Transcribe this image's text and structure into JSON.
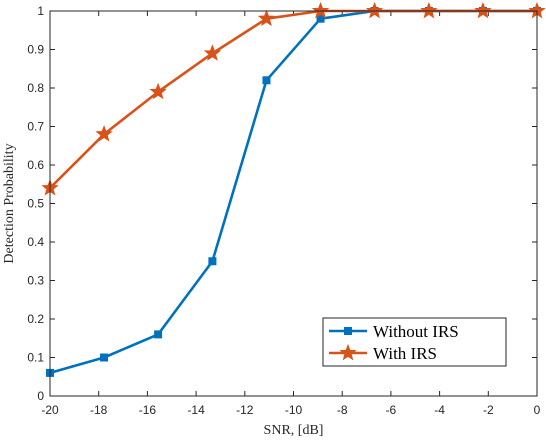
{
  "chart_data": {
    "type": "line",
    "xlabel": "SNR, [dB]",
    "ylabel": "Detection Probability",
    "xlim": [
      -20,
      0
    ],
    "ylim": [
      0,
      1
    ],
    "xticks": [
      "-20",
      "-18",
      "-16",
      "-14",
      "-12",
      "-10",
      "-8",
      "-6",
      "-4",
      "-2",
      "0"
    ],
    "yticks": [
      "0",
      "0.1",
      "0.2",
      "0.3",
      "0.4",
      "0.5",
      "0.6",
      "0.7",
      "0.8",
      "0.9",
      "1"
    ],
    "grid": false,
    "legend_position": "bottom-right",
    "x": [
      -20,
      -17.78,
      -15.56,
      -13.33,
      -11.11,
      -8.89,
      -6.67,
      -4.44,
      -2.22,
      0
    ],
    "series": [
      {
        "name": "Without IRS",
        "color": "#0072BD",
        "marker": "square",
        "values": [
          0.06,
          0.1,
          0.16,
          0.35,
          0.82,
          0.98,
          1.0,
          1.0,
          1.0,
          1.0
        ]
      },
      {
        "name": "With IRS",
        "color": "#D95319",
        "marker": "star",
        "values": [
          0.54,
          0.68,
          0.79,
          0.89,
          0.98,
          1.0,
          1.0,
          1.0,
          1.0,
          1.0
        ]
      }
    ]
  }
}
